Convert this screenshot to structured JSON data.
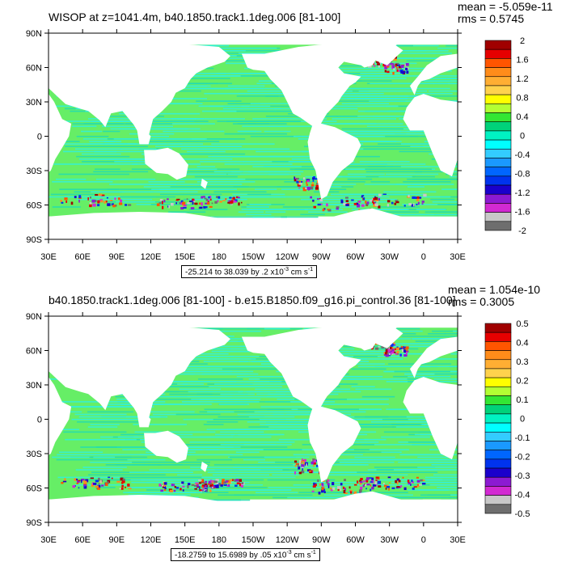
{
  "chart_data": [
    {
      "type": "heatmap",
      "title": "WISOP at z=1041.4m, b40.1850.track1.1deg.006 [81-100]",
      "stats": {
        "mean": "mean = -5.059e-11",
        "rms": "rms = 0.5745"
      },
      "range_note": {
        "prefix": "-25.214 to 38.039 by .2 x10",
        "exp": "-3",
        "unit": " cm s",
        "unit_exp": "-1"
      },
      "x_ticks": [
        "30E",
        "60E",
        "90E",
        "120E",
        "150E",
        "180",
        "150W",
        "120W",
        "90W",
        "60W",
        "30W",
        "0",
        "30E"
      ],
      "y_ticks": [
        "90N",
        "60N",
        "30N",
        "0",
        "30S",
        "60S",
        "90S"
      ],
      "colorbar_labels": [
        "2",
        "1.6",
        "1.2",
        "0.8",
        "0.4",
        "0",
        "-0.4",
        "-0.8",
        "-1.2",
        "-1.6",
        "-2"
      ],
      "colorbar_levels": [
        2,
        1.6,
        1.2,
        0.8,
        0.4,
        0,
        -0.4,
        -0.8,
        -1.2,
        -1.6,
        -2
      ]
    },
    {
      "type": "heatmap",
      "title": "b40.1850.track1.1deg.006 [81-100] - b.e15.B1850.f09_g16.pi_control.36 [81-100]",
      "stats": {
        "mean": "mean = 1.054e-10",
        "rms": "rms = 0.3005"
      },
      "range_note": {
        "prefix": "-18.2759 to 15.6989 by .05 x10",
        "exp": "-3",
        "unit": " cm s",
        "unit_exp": "-1"
      },
      "x_ticks": [
        "30E",
        "60E",
        "90E",
        "120E",
        "150E",
        "180",
        "150W",
        "120W",
        "90W",
        "60W",
        "30W",
        "0",
        "30E"
      ],
      "y_ticks": [
        "90N",
        "60N",
        "30N",
        "0",
        "30S",
        "60S",
        "90S"
      ],
      "colorbar_labels": [
        "0.5",
        "0.4",
        "0.3",
        "0.2",
        "0.1",
        "0",
        "-0.1",
        "-0.2",
        "-0.3",
        "-0.4",
        "-0.5"
      ],
      "colorbar_levels": [
        0.5,
        0.4,
        0.3,
        0.2,
        0.1,
        0,
        -0.1,
        -0.2,
        -0.3,
        -0.4,
        -0.5
      ]
    }
  ],
  "colors": {
    "palette": [
      "#a00000",
      "#e60000",
      "#ff5500",
      "#ff8c1a",
      "#ffae33",
      "#ffd24d",
      "#ffff00",
      "#b3ff33",
      "#33e633",
      "#00d27a",
      "#00f2c2",
      "#00ffff",
      "#33ccff",
      "#1a99ff",
      "#0066ff",
      "#0033ee",
      "#1a00cc",
      "#8c1ad2",
      "#d22ad2",
      "#c8c8c8",
      "#6e6e6e"
    ],
    "ocean_green": "#66ee66",
    "ocean_cyan": "#33f0d8",
    "ocean_teal": "#22ddb0"
  }
}
